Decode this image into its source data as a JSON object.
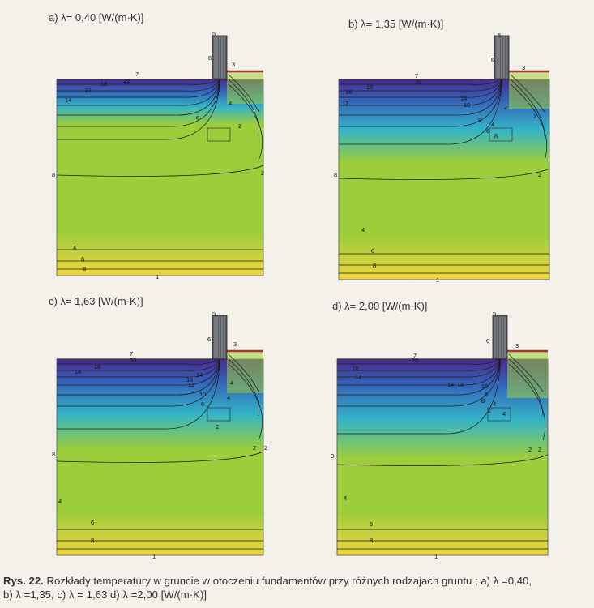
{
  "figure": {
    "panels": [
      {
        "title": "a) λ= 0,40 [W/(m·K)]",
        "contour_labels": [
          "1",
          "2",
          "2",
          "3",
          "4",
          "4",
          "5",
          "6",
          "6",
          "6",
          "7",
          "8",
          "8",
          "10",
          "14",
          "18",
          "20"
        ]
      },
      {
        "title": "b) λ= 1,35 [W/(m·K)]",
        "contour_labels": [
          "1",
          "2",
          "2",
          "3",
          "4",
          "4",
          "4",
          "5",
          "6",
          "6",
          "6",
          "6",
          "7",
          "8",
          "8",
          "8",
          "10",
          "12",
          "14",
          "16",
          "18",
          "20"
        ]
      },
      {
        "title": "c) λ= 1,63 [W/(m·K)]",
        "contour_labels": [
          "1",
          "2",
          "2",
          "2",
          "3",
          "4",
          "4",
          "4",
          "5",
          "6",
          "6",
          "6",
          "7",
          "8",
          "8",
          "10",
          "12",
          "14",
          "14",
          "16",
          "18",
          "20"
        ]
      },
      {
        "title": "d) λ= 2,00 [W/(m·K)]",
        "contour_labels": [
          "1",
          "2",
          "2",
          "2",
          "3",
          "4",
          "4",
          "4",
          "5",
          "6",
          "6",
          "6",
          "7",
          "8",
          "8",
          "8",
          "10",
          "12",
          "14",
          "16",
          "18",
          "20"
        ]
      }
    ],
    "colors": {
      "top": "#4b2a8e",
      "upper": "#3565b8",
      "middle": "#34b4c8",
      "lower": "#9ccd3a",
      "bottom": "#f0d640",
      "foundation": "#5d5f66"
    },
    "caption_prefix": "Rys. 22.",
    "caption_line1": " Rozkłady temperatury w gruncie w otoczeniu fundamentów przy różnych rodzajach gruntu ; a) λ =0,40,",
    "caption_line2": "b) λ =1,35, c) λ = 1,63 d) λ =2,00 [W/(m·K)]"
  }
}
